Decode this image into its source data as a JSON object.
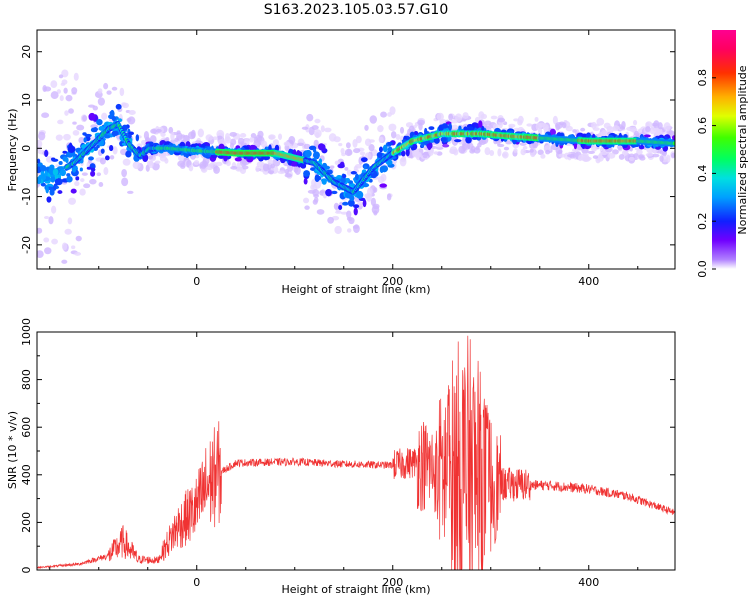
{
  "figure": {
    "title": "S163.2023.105.03.57.G10"
  },
  "chart_data": [
    {
      "type": "heatmap",
      "xlabel": "Height of straight line (km)",
      "ylabel": "Frequency (Hz)",
      "xlim": [
        -163,
        488
      ],
      "ylim": [
        -25,
        24.5
      ],
      "xticks": [
        0,
        200,
        400
      ],
      "yticks": [
        -20,
        -10,
        0,
        10,
        20
      ],
      "colorbar": {
        "label": "Normalized spectral amplitude",
        "range": [
          0,
          1
        ],
        "ticks": [
          "0.0",
          "0.2",
          "0.4",
          "0.6",
          "0.8"
        ],
        "colormap": "gist_rainbow"
      },
      "ridge": [
        {
          "x": -150,
          "y": -6
        },
        {
          "x": -125,
          "y": -3
        },
        {
          "x": -105,
          "y": 1
        },
        {
          "x": -90,
          "y": 4
        },
        {
          "x": -80,
          "y": 5
        },
        {
          "x": -70,
          "y": 1
        },
        {
          "x": -58,
          "y": -1.5
        },
        {
          "x": -48,
          "y": 0
        },
        {
          "x": -30,
          "y": 0
        },
        {
          "x": 0,
          "y": -0.5
        },
        {
          "x": 40,
          "y": -1
        },
        {
          "x": 80,
          "y": -1
        },
        {
          "x": 100,
          "y": -2
        },
        {
          "x": 120,
          "y": -3
        },
        {
          "x": 140,
          "y": -7
        },
        {
          "x": 160,
          "y": -9
        },
        {
          "x": 180,
          "y": -4
        },
        {
          "x": 200,
          "y": -1
        },
        {
          "x": 220,
          "y": 1.5
        },
        {
          "x": 250,
          "y": 3
        },
        {
          "x": 290,
          "y": 3
        },
        {
          "x": 320,
          "y": 2.5
        },
        {
          "x": 360,
          "y": 2
        },
        {
          "x": 400,
          "y": 1.5
        },
        {
          "x": 450,
          "y": 1.5
        },
        {
          "x": 488,
          "y": 1
        }
      ]
    },
    {
      "type": "line",
      "xlabel": "Height of straight line (km)",
      "ylabel": "SNR (10 * v/v)",
      "xlim": [
        -163,
        488
      ],
      "ylim": [
        0,
        1000
      ],
      "xticks": [
        0,
        200,
        400
      ],
      "yticks": [
        0,
        200,
        400,
        600,
        800,
        1000
      ],
      "color": "#f03232",
      "envelope": [
        {
          "x": -163,
          "y": 10
        },
        {
          "x": -120,
          "y": 25
        },
        {
          "x": -90,
          "y": 60
        },
        {
          "x": -75,
          "y": 120
        },
        {
          "x": -60,
          "y": 45
        },
        {
          "x": -40,
          "y": 40
        },
        {
          "x": -20,
          "y": 180
        },
        {
          "x": 0,
          "y": 260
        },
        {
          "x": 10,
          "y": 350
        },
        {
          "x": 20,
          "y": 400
        },
        {
          "x": 40,
          "y": 450
        },
        {
          "x": 100,
          "y": 455
        },
        {
          "x": 150,
          "y": 445
        },
        {
          "x": 200,
          "y": 440
        },
        {
          "x": 225,
          "y": 455
        },
        {
          "x": 245,
          "y": 420
        },
        {
          "x": 260,
          "y": 400
        },
        {
          "x": 280,
          "y": 380
        },
        {
          "x": 300,
          "y": 360
        },
        {
          "x": 320,
          "y": 360
        },
        {
          "x": 360,
          "y": 355
        },
        {
          "x": 400,
          "y": 340
        },
        {
          "x": 440,
          "y": 310
        },
        {
          "x": 488,
          "y": 240
        }
      ],
      "noise_peak": {
        "x": 275,
        "y": 1000
      }
    }
  ]
}
